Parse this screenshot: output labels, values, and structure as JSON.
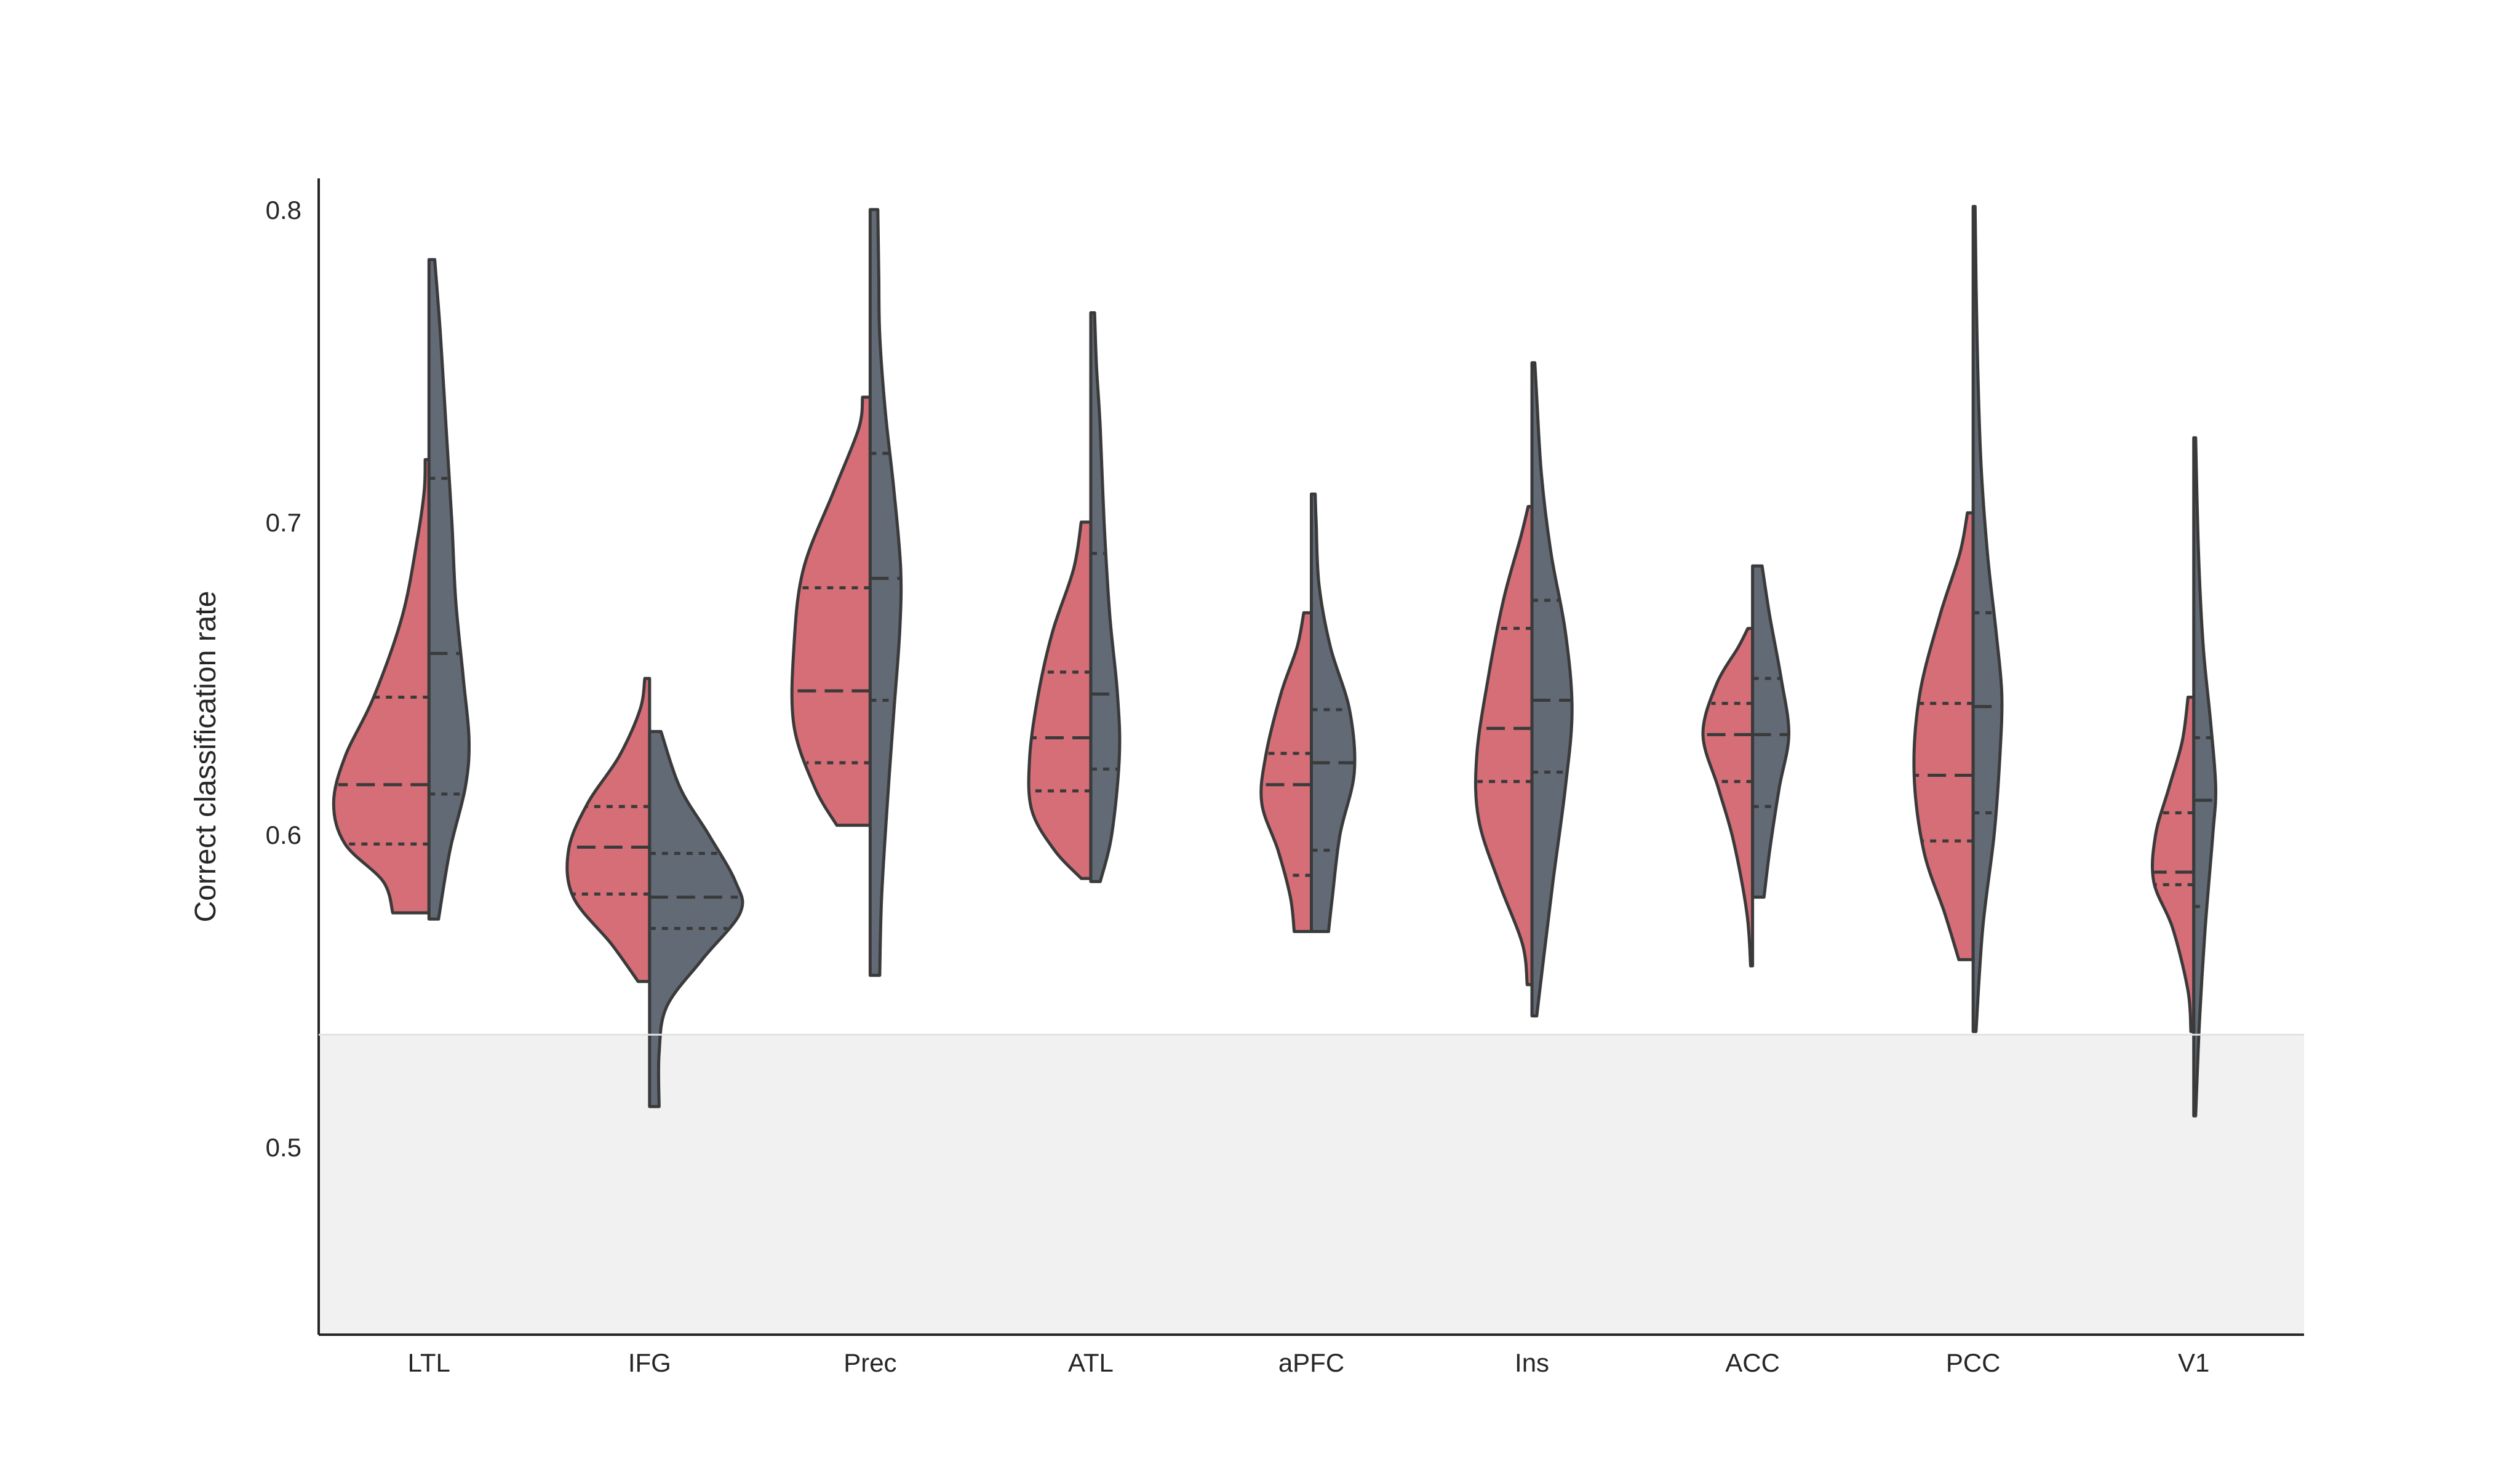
{
  "chart_data": {
    "type": "violin",
    "subtype": "split",
    "title": "",
    "xlabel": "",
    "ylabel": "Correct classification rate",
    "ylim": [
      0.44,
      0.81
    ],
    "yticks": [
      0.5,
      0.6,
      0.7,
      0.8
    ],
    "ytick_labels": [
      "0.5",
      "0.6",
      "0.7",
      "0.8"
    ],
    "grid": false,
    "legend": "none",
    "chance_band": {
      "from": 0.44,
      "to": 0.536,
      "color": "#f1f1f1"
    },
    "categories": [
      "LTL",
      "IFG",
      "Prec",
      "ATL",
      "aPFC",
      "Ins",
      "ACC",
      "PCC",
      "V1"
    ],
    "colors": {
      "left": "#d56e77",
      "right": "#626a76",
      "stroke": "#3a3a3a",
      "axis": "#262626"
    },
    "violins": [
      {
        "left": {
          "min": 0.575,
          "max": 0.72,
          "q1": 0.597,
          "median": 0.616,
          "q3": 0.644,
          "profile": [
            [
              0.575,
              0.38
            ],
            [
              0.585,
              0.48
            ],
            [
              0.597,
              0.88
            ],
            [
              0.61,
              1.0
            ],
            [
              0.625,
              0.88
            ],
            [
              0.644,
              0.58
            ],
            [
              0.67,
              0.28
            ],
            [
              0.695,
              0.12
            ],
            [
              0.71,
              0.05
            ],
            [
              0.72,
              0.04
            ]
          ]
        },
        "right": {
          "min": 0.573,
          "max": 0.784,
          "q1": 0.613,
          "median": 0.658,
          "q3": 0.714,
          "profile": [
            [
              0.573,
              0.1
            ],
            [
              0.595,
              0.22
            ],
            [
              0.615,
              0.38
            ],
            [
              0.63,
              0.42
            ],
            [
              0.65,
              0.36
            ],
            [
              0.675,
              0.28
            ],
            [
              0.7,
              0.24
            ],
            [
              0.73,
              0.18
            ],
            [
              0.76,
              0.12
            ],
            [
              0.784,
              0.06
            ]
          ]
        }
      },
      {
        "left": {
          "min": 0.553,
          "max": 0.65,
          "q1": 0.581,
          "median": 0.596,
          "q3": 0.609,
          "profile": [
            [
              0.553,
              0.12
            ],
            [
              0.565,
              0.4
            ],
            [
              0.58,
              0.8
            ],
            [
              0.595,
              0.85
            ],
            [
              0.61,
              0.65
            ],
            [
              0.625,
              0.32
            ],
            [
              0.64,
              0.1
            ],
            [
              0.65,
              0.05
            ]
          ]
        },
        "right": {
          "min": 0.513,
          "max": 0.633,
          "q1": 0.57,
          "median": 0.58,
          "q3": 0.594,
          "profile": [
            [
              0.513,
              0.1
            ],
            [
              0.53,
              0.1
            ],
            [
              0.545,
              0.18
            ],
            [
              0.56,
              0.55
            ],
            [
              0.575,
              0.95
            ],
            [
              0.585,
              0.9
            ],
            [
              0.6,
              0.62
            ],
            [
              0.615,
              0.32
            ],
            [
              0.633,
              0.12
            ]
          ]
        }
      },
      {
        "left": {
          "min": 0.603,
          "max": 0.74,
          "q1": 0.623,
          "median": 0.646,
          "q3": 0.679,
          "profile": [
            [
              0.603,
              0.35
            ],
            [
              0.615,
              0.58
            ],
            [
              0.635,
              0.8
            ],
            [
              0.66,
              0.8
            ],
            [
              0.685,
              0.7
            ],
            [
              0.71,
              0.38
            ],
            [
              0.73,
              0.12
            ],
            [
              0.74,
              0.08
            ]
          ]
        },
        "right": {
          "min": 0.555,
          "max": 0.8,
          "q1": 0.643,
          "median": 0.682,
          "q3": 0.722,
          "profile": [
            [
              0.555,
              0.1
            ],
            [
              0.58,
              0.12
            ],
            [
              0.61,
              0.18
            ],
            [
              0.64,
              0.25
            ],
            [
              0.665,
              0.31
            ],
            [
              0.685,
              0.32
            ],
            [
              0.71,
              0.25
            ],
            [
              0.735,
              0.16
            ],
            [
              0.76,
              0.1
            ],
            [
              0.78,
              0.09
            ],
            [
              0.8,
              0.08
            ]
          ]
        }
      },
      {
        "left": {
          "min": 0.586,
          "max": 0.7,
          "q1": 0.614,
          "median": 0.631,
          "q3": 0.652,
          "profile": [
            [
              0.586,
              0.1
            ],
            [
              0.595,
              0.38
            ],
            [
              0.608,
              0.62
            ],
            [
              0.625,
              0.64
            ],
            [
              0.645,
              0.55
            ],
            [
              0.665,
              0.4
            ],
            [
              0.685,
              0.18
            ],
            [
              0.7,
              0.1
            ]
          ]
        },
        "right": {
          "min": 0.585,
          "max": 0.767,
          "q1": 0.621,
          "median": 0.645,
          "q3": 0.69,
          "profile": [
            [
              0.585,
              0.1
            ],
            [
              0.6,
              0.22
            ],
            [
              0.625,
              0.3
            ],
            [
              0.645,
              0.28
            ],
            [
              0.67,
              0.2
            ],
            [
              0.7,
              0.14
            ],
            [
              0.73,
              0.1
            ],
            [
              0.75,
              0.06
            ],
            [
              0.767,
              0.04
            ]
          ]
        }
      },
      {
        "left": {
          "min": 0.569,
          "max": 0.671,
          "q1": 0.587,
          "median": 0.616,
          "q3": 0.626,
          "profile": [
            [
              0.569,
              0.18
            ],
            [
              0.58,
              0.22
            ],
            [
              0.595,
              0.35
            ],
            [
              0.61,
              0.52
            ],
            [
              0.625,
              0.48
            ],
            [
              0.645,
              0.32
            ],
            [
              0.66,
              0.15
            ],
            [
              0.671,
              0.08
            ]
          ]
        },
        "right": {
          "min": 0.569,
          "max": 0.709,
          "q1": 0.595,
          "median": 0.623,
          "q3": 0.64,
          "profile": [
            [
              0.569,
              0.18
            ],
            [
              0.58,
              0.22
            ],
            [
              0.6,
              0.3
            ],
            [
              0.62,
              0.45
            ],
            [
              0.64,
              0.4
            ],
            [
              0.66,
              0.2
            ],
            [
              0.68,
              0.08
            ],
            [
              0.7,
              0.05
            ],
            [
              0.709,
              0.04
            ]
          ]
        }
      },
      {
        "left": {
          "min": 0.552,
          "max": 0.705,
          "q1": 0.617,
          "median": 0.634,
          "q3": 0.666,
          "profile": [
            [
              0.552,
              0.05
            ],
            [
              0.565,
              0.1
            ],
            [
              0.585,
              0.35
            ],
            [
              0.605,
              0.56
            ],
            [
              0.625,
              0.58
            ],
            [
              0.65,
              0.46
            ],
            [
              0.675,
              0.3
            ],
            [
              0.695,
              0.12
            ],
            [
              0.705,
              0.04
            ]
          ]
        },
        "right": {
          "min": 0.542,
          "max": 0.751,
          "q1": 0.62,
          "median": 0.643,
          "q3": 0.675,
          "profile": [
            [
              0.542,
              0.05
            ],
            [
              0.56,
              0.12
            ],
            [
              0.585,
              0.22
            ],
            [
              0.615,
              0.35
            ],
            [
              0.64,
              0.42
            ],
            [
              0.665,
              0.35
            ],
            [
              0.69,
              0.2
            ],
            [
              0.715,
              0.1
            ],
            [
              0.74,
              0.05
            ],
            [
              0.751,
              0.03
            ]
          ]
        }
      },
      {
        "left": {
          "min": 0.558,
          "max": 0.666,
          "q1": 0.617,
          "median": 0.632,
          "q3": 0.642,
          "profile": [
            [
              0.558,
              0.02
            ],
            [
              0.575,
              0.06
            ],
            [
              0.598,
              0.2
            ],
            [
              0.615,
              0.36
            ],
            [
              0.632,
              0.52
            ],
            [
              0.648,
              0.38
            ],
            [
              0.66,
              0.15
            ],
            [
              0.666,
              0.05
            ]
          ]
        },
        "right": {
          "min": 0.58,
          "max": 0.686,
          "q1": 0.609,
          "median": 0.632,
          "q3": 0.65,
          "profile": [
            [
              0.58,
              0.12
            ],
            [
              0.595,
              0.18
            ],
            [
              0.615,
              0.28
            ],
            [
              0.632,
              0.38
            ],
            [
              0.65,
              0.3
            ],
            [
              0.67,
              0.18
            ],
            [
              0.686,
              0.1
            ]
          ]
        }
      },
      {
        "left": {
          "min": 0.56,
          "max": 0.703,
          "q1": 0.598,
          "median": 0.619,
          "q3": 0.642,
          "profile": [
            [
              0.56,
              0.15
            ],
            [
              0.575,
              0.3
            ],
            [
              0.595,
              0.52
            ],
            [
              0.62,
              0.62
            ],
            [
              0.645,
              0.56
            ],
            [
              0.67,
              0.35
            ],
            [
              0.69,
              0.14
            ],
            [
              0.703,
              0.06
            ]
          ]
        },
        "right": {
          "min": 0.537,
          "max": 0.801,
          "q1": 0.607,
          "median": 0.641,
          "q3": 0.671,
          "profile": [
            [
              0.537,
              0.03
            ],
            [
              0.57,
              0.1
            ],
            [
              0.6,
              0.22
            ],
            [
              0.625,
              0.28
            ],
            [
              0.645,
              0.3
            ],
            [
              0.665,
              0.24
            ],
            [
              0.69,
              0.15
            ],
            [
              0.72,
              0.08
            ],
            [
              0.76,
              0.04
            ],
            [
              0.801,
              0.02
            ]
          ]
        }
      },
      {
        "left": {
          "min": 0.537,
          "max": 0.644,
          "q1": 0.584,
          "median": 0.588,
          "q3": 0.607,
          "profile": [
            [
              0.537,
              0.03
            ],
            [
              0.55,
              0.06
            ],
            [
              0.57,
              0.22
            ],
            [
              0.585,
              0.42
            ],
            [
              0.6,
              0.4
            ],
            [
              0.615,
              0.26
            ],
            [
              0.63,
              0.12
            ],
            [
              0.644,
              0.06
            ]
          ]
        },
        "right": {
          "min": 0.51,
          "max": 0.727,
          "q1": 0.577,
          "median": 0.611,
          "q3": 0.631,
          "profile": [
            [
              0.51,
              0.02
            ],
            [
              0.54,
              0.06
            ],
            [
              0.57,
              0.12
            ],
            [
              0.6,
              0.2
            ],
            [
              0.615,
              0.23
            ],
            [
              0.635,
              0.18
            ],
            [
              0.66,
              0.1
            ],
            [
              0.69,
              0.05
            ],
            [
              0.727,
              0.02
            ]
          ]
        }
      }
    ]
  }
}
